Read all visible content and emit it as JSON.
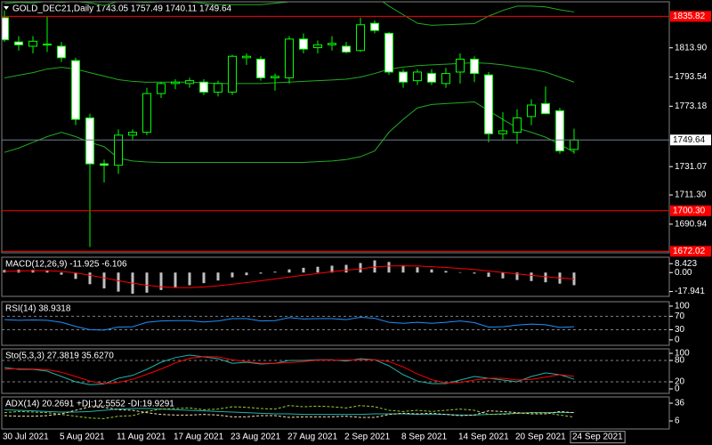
{
  "chart_data": [
    {
      "type": "candlestick",
      "title": "GOLD_DEC21,Daily  1743.05 1757.49 1740.11 1749.64",
      "categories": [
        "30 Jul 2021",
        null,
        null,
        null,
        "5 Aug 2021",
        null,
        null,
        null,
        "11 Aug 2021",
        null,
        null,
        null,
        "17 Aug 2021",
        null,
        null,
        null,
        "23 Aug 2021",
        null,
        null,
        null,
        "27 Aug 2021",
        null,
        null,
        null,
        "2 Sep 2021",
        null,
        null,
        null,
        "8 Sep 2021",
        null,
        null,
        null,
        "14 Sep 2021",
        null,
        null,
        null,
        "20 Sep 2021",
        null,
        null,
        null,
        "24 Sep 2021"
      ],
      "open": [
        1834.9,
        1818,
        1815,
        1816,
        1815,
        1805,
        1765,
        1733,
        1732,
        1753,
        1755,
        1782,
        1789,
        1789,
        1790,
        1783,
        1783,
        1807,
        1806,
        1793,
        1793,
        1820,
        1814,
        1816,
        1815,
        1812,
        1831,
        1824,
        1797,
        1791,
        1796,
        1789,
        1797,
        1806,
        1795,
        1754,
        1755,
        1766,
        1775,
        1770,
        1743.05
      ],
      "high": [
        1840,
        1822,
        1822,
        1836,
        1818,
        1807,
        1768,
        1736,
        1757,
        1757,
        1786,
        1790,
        1792,
        1793,
        1792,
        1791,
        1809,
        1810,
        1808,
        1796,
        1822,
        1824,
        1819,
        1822,
        1818,
        1835,
        1833,
        1825,
        1799,
        1799,
        1799,
        1800,
        1810,
        1808,
        1797,
        1769,
        1771,
        1778,
        1787,
        1772,
        1757.49
      ],
      "low": [
        1818,
        1812,
        1810,
        1811,
        1804,
        1760,
        1675,
        1720,
        1726,
        1750,
        1753,
        1779,
        1785,
        1786,
        1781,
        1780,
        1781,
        1802,
        1791,
        1784,
        1789,
        1810,
        1810,
        1812,
        1810,
        1811,
        1824,
        1795,
        1786,
        1788,
        1788,
        1786,
        1789,
        1790,
        1748,
        1750,
        1747,
        1760,
        1768,
        1740,
        1740.11
      ],
      "close": [
        1819.5,
        1816,
        1818.5,
        1816.5,
        1807,
        1764,
        1733,
        1732,
        1753,
        1755,
        1782,
        1789,
        1790,
        1791,
        1783,
        1789,
        1808,
        1808,
        1793,
        1794,
        1820,
        1813,
        1816,
        1817,
        1811,
        1830,
        1826,
        1797,
        1790,
        1797,
        1790,
        1796,
        1806,
        1796,
        1754,
        1756,
        1765,
        1774,
        1768,
        1742,
        1749.64
      ],
      "up_color": "#00ff00",
      "down_color": "#ffffff",
      "series": [
        {
          "color": "#22aa22",
          "style": "solid",
          "values": [
            1844.8,
            1845.6,
            1845.2,
            1846.2,
            1845.6,
            1846.2,
            1845.2,
            1843.4,
            1846.4,
            1846,
            1845.5,
            1846,
            1846,
            1846,
            1845,
            1844,
            1844,
            1844,
            1844,
            1845,
            1846,
            1847,
            1847.5,
            1848,
            1848,
            1849,
            1850,
            1843,
            1837,
            1831,
            1829.6,
            1830,
            1830.4,
            1830.8,
            1836,
            1840,
            1843,
            1843,
            1842.4,
            1840.4,
            1838.9
          ]
        },
        {
          "color": "#22aa22",
          "style": "solid",
          "values": [
            1792.9,
            1794.8,
            1796.6,
            1799.1,
            1800.3,
            1799.1,
            1796.6,
            1794.2,
            1791.7,
            1790.5,
            1789.9,
            1790,
            1790,
            1790,
            1789.5,
            1789,
            1789,
            1789,
            1789,
            1789.5,
            1790,
            1790.5,
            1791,
            1791.5,
            1792,
            1793.5,
            1796,
            1799,
            1800.5,
            1801.5,
            1802,
            1802.5,
            1803,
            1803.5,
            1803,
            1802,
            1800.5,
            1799,
            1797,
            1793.5,
            1790
          ]
        },
        {
          "color": "#22aa22",
          "style": "solid",
          "values": [
            1741,
            1744,
            1748,
            1752,
            1755,
            1752,
            1748,
            1745,
            1737,
            1735,
            1734.3,
            1734,
            1734,
            1734,
            1734,
            1734,
            1734,
            1734,
            1734,
            1734,
            1734,
            1734,
            1734.5,
            1735,
            1736,
            1738,
            1742,
            1755,
            1764,
            1772,
            1774.4,
            1775,
            1775.6,
            1776.2,
            1770,
            1764,
            1758,
            1755,
            1751.6,
            1746.6,
            1741.1
          ]
        }
      ],
      "ylim": [
        1671,
        1846
      ],
      "yticks": [
        {
          "value": 1813.9,
          "label": "1813.90"
        },
        1793.54,
        1773.18,
        1731.07,
        {
          "value": 1711.3,
          "label": "1711.30"
        },
        1690.94
      ],
      "hlines": [
        1835.82,
        {
          "value": 1700.3,
          "label": "1700.30"
        },
        1672.02
      ],
      "hline_color": "#ff0000",
      "price_line_color": "#6f7f8f"
    },
    {
      "type": "macd",
      "title": "MACD(12,26,9) -11.925 -6.106",
      "series": [
        {
          "color": "#c0c0c0",
          "style": "histogram",
          "values": [
            2.5,
            2.8,
            2.6,
            2.2,
            -2,
            -6,
            -11,
            -15,
            -18,
            -20,
            -19,
            -16.5,
            -14,
            -12,
            -10,
            -7.5,
            -4.5,
            -2.5,
            -1,
            0.8,
            3,
            4.5,
            5.5,
            6.5,
            7.3,
            9,
            11.5,
            10,
            7,
            5,
            3,
            1.5,
            0.3,
            -1,
            -4,
            -5.5,
            -7,
            -8,
            -9.2,
            -10.5,
            -11.925
          ]
        },
        {
          "color": "#ff0000",
          "style": "solid",
          "values": [
            1,
            1.5,
            1.8,
            1.8,
            1.2,
            -0.3,
            -2.5,
            -5,
            -7.7,
            -10,
            -12,
            -13.5,
            -14.2,
            -14.2,
            -13.6,
            -12.5,
            -11,
            -9.5,
            -7.8,
            -6,
            -4.2,
            -2.5,
            -0.8,
            0.8,
            2.2,
            3.6,
            5.2,
            6.2,
            6.4,
            6.2,
            5.6,
            4.8,
            3.9,
            2.9,
            1.5,
            0.1,
            -1.3,
            -2.6,
            -3.9,
            -5,
            -6.106
          ]
        }
      ],
      "ylim": [
        -22.5,
        14.5
      ],
      "yticks": [
        8.423,
        {
          "value": 0,
          "label": "0.00"
        },
        -17.941
      ]
    },
    {
      "type": "line",
      "title": "RSI(14) 38.9318",
      "series": [
        {
          "color": "#1e90ff",
          "style": "solid",
          "values": [
            60,
            58,
            59,
            58,
            52,
            40,
            30,
            29,
            38,
            39,
            52,
            56,
            57,
            57,
            53,
            56,
            63,
            63,
            56,
            57,
            66,
            62,
            63,
            63,
            60,
            67,
            64,
            52,
            49,
            52,
            49,
            52,
            56,
            51,
            38,
            39,
            44,
            47,
            45,
            37,
            38.9318
          ]
        }
      ],
      "ylim": [
        -16,
        113
      ],
      "yticks": [
        100,
        70,
        30,
        0
      ],
      "levels": [
        70,
        30
      ]
    },
    {
      "type": "line",
      "title": "Sto(5,3,3) 27.3819 35.6270",
      "series": [
        {
          "color": "#20b2aa",
          "style": "solid",
          "values": [
            60,
            55,
            55,
            50,
            35,
            20,
            12,
            14,
            30,
            38,
            55,
            75,
            88,
            95,
            90,
            85,
            72,
            75,
            70,
            72,
            80,
            80,
            82,
            82,
            78,
            85,
            82,
            65,
            40,
            22,
            15,
            15,
            25,
            35,
            30,
            25,
            20,
            35,
            45,
            40,
            27.3819
          ]
        },
        {
          "color": "#ff0000",
          "style": "solid",
          "values": [
            55,
            57,
            56,
            54,
            47,
            35,
            22,
            15,
            18,
            27,
            41,
            56,
            73,
            86,
            91,
            90,
            82,
            77,
            72,
            72,
            74,
            77,
            81,
            81,
            81,
            82,
            82,
            77,
            62,
            42,
            26,
            17,
            18,
            25,
            30,
            30,
            25,
            27,
            33,
            40,
            35.627
          ]
        }
      ],
      "ylim": [
        -12.5,
        112.5
      ],
      "yticks": [
        100,
        80,
        20,
        0
      ],
      "levels": [
        80,
        20
      ]
    },
    {
      "type": "line",
      "title": "ADX(14) 20.2691 +DI:12.5552 -DI:19.9291",
      "series": [
        {
          "color": "#20b2aa",
          "style": "solid",
          "values": [
            25,
            24,
            23,
            22,
            21,
            21,
            22,
            24,
            26,
            27,
            27,
            26,
            25,
            24,
            23,
            22,
            21,
            20,
            19,
            18,
            18,
            17,
            17,
            17,
            17,
            17,
            18,
            18,
            18,
            17,
            17,
            17,
            16,
            16,
            17,
            18,
            19,
            20,
            20,
            20.3,
            20.2691
          ]
        },
        {
          "color": "#9acd32",
          "style": "dash",
          "values": [
            20,
            22,
            21,
            20,
            17,
            14,
            11,
            10,
            14,
            15,
            22,
            26,
            27,
            28,
            25,
            26,
            30,
            29,
            27,
            26,
            32,
            30,
            31,
            30,
            28,
            32,
            30,
            24,
            22,
            24,
            22,
            24,
            26,
            24,
            17,
            17,
            19,
            20,
            20,
            16,
            12.5552
          ]
        },
        {
          "color": "#f5deb3",
          "style": "dash",
          "values": [
            15,
            14,
            14,
            15,
            18,
            24,
            30,
            29,
            25,
            24,
            20,
            17,
            16,
            16,
            17,
            16,
            13,
            13,
            15,
            15,
            12,
            13,
            13,
            13,
            14,
            12,
            12,
            17,
            19,
            18,
            19,
            17,
            15,
            16,
            23,
            22,
            20,
            18,
            18,
            22,
            19.9291
          ]
        }
      ],
      "ylim": [
        -7.5,
        46.5
      ],
      "yticks": [
        36,
        6
      ]
    }
  ]
}
